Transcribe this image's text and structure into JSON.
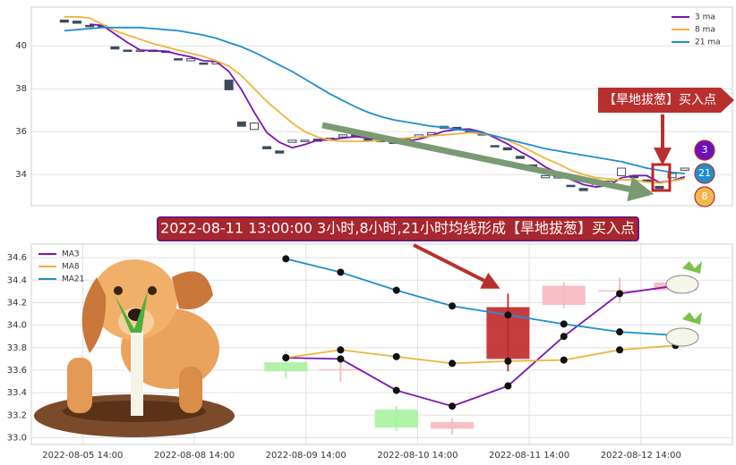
{
  "banner": "2022-08-11 13:00:00 3小时,8小时,21小时均线形成【旱地拔葱】买入点",
  "chart_data": [
    {
      "type": "candlestick",
      "open": [
        41.2,
        41.15,
        40.95,
        40.95,
        39.95,
        39.8,
        39.75,
        39.8,
        39.75,
        39.4,
        39.3,
        39.2,
        39.15,
        38.4,
        36.45,
        36.1,
        35.3,
        35.1,
        35.5,
        35.55,
        35.65,
        35.6,
        35.75,
        35.85,
        35.65,
        35.6,
        35.55,
        35.55,
        35.75,
        35.85,
        36.15,
        36.2,
        36.05,
        35.9,
        35.35,
        35.25,
        34.85,
        34.45,
        33.85,
        33.85,
        33.5,
        33.35,
        33.45,
        33.55,
        33.95,
        33.95,
        33.75,
        33.45,
        33.85,
        34.2
      ],
      "close": [
        41.1,
        41.05,
        40.9,
        40.85,
        39.85,
        39.75,
        39.8,
        39.75,
        39.7,
        39.35,
        39.4,
        39.15,
        39.25,
        37.95,
        36.25,
        36.4,
        35.2,
        35.0,
        35.6,
        35.6,
        35.55,
        35.7,
        35.85,
        35.75,
        35.6,
        35.55,
        35.45,
        35.65,
        35.85,
        35.95,
        36.25,
        36.1,
        36.0,
        35.85,
        35.3,
        35.15,
        34.75,
        34.35,
        33.95,
        33.9,
        33.45,
        33.25,
        33.55,
        33.7,
        34.3,
        33.85,
        33.7,
        33.35,
        34.05,
        34.3
      ],
      "up_color": "#ffffff",
      "down_color": "#3d4a5c",
      "series": [
        {
          "name": "3 ma",
          "color": "#7b16b0",
          "values": [
            null,
            null,
            41.0,
            40.95,
            40.55,
            40.15,
            39.8,
            39.77,
            39.75,
            39.6,
            39.48,
            39.3,
            39.27,
            38.8,
            37.95,
            36.9,
            35.95,
            35.5,
            35.25,
            35.4,
            35.6,
            35.62,
            35.7,
            35.77,
            35.7,
            35.63,
            35.53,
            35.55,
            35.65,
            35.82,
            36.02,
            36.1,
            36.12,
            35.98,
            35.72,
            35.43,
            35.07,
            34.75,
            34.35,
            34.07,
            33.77,
            33.53,
            33.42,
            33.5,
            33.85,
            33.95,
            33.95,
            33.63,
            33.7,
            33.9
          ]
        },
        {
          "name": "8 ma",
          "color": "#eeb43c",
          "values": [
            41.35,
            41.35,
            41.3,
            41.0,
            40.7,
            40.5,
            40.3,
            40.1,
            39.95,
            39.8,
            39.65,
            39.5,
            39.3,
            39.05,
            38.6,
            38.0,
            37.4,
            36.9,
            36.4,
            36.0,
            35.75,
            35.6,
            35.55,
            35.55,
            35.55,
            35.6,
            35.65,
            35.7,
            35.75,
            35.8,
            35.85,
            35.9,
            35.95,
            35.9,
            35.8,
            35.6,
            35.35,
            35.05,
            34.75,
            34.5,
            34.2,
            34.0,
            33.85,
            33.8,
            33.75,
            33.75,
            33.65,
            33.6,
            33.7,
            33.8
          ]
        },
        {
          "name": "21 ma",
          "color": "#1f8fce",
          "values": [
            40.7,
            40.75,
            40.8,
            40.85,
            40.85,
            40.85,
            40.85,
            40.8,
            40.75,
            40.7,
            40.6,
            40.5,
            40.35,
            40.15,
            39.95,
            39.7,
            39.4,
            39.1,
            38.8,
            38.45,
            38.1,
            37.75,
            37.45,
            37.15,
            36.9,
            36.7,
            36.55,
            36.45,
            36.35,
            36.25,
            36.2,
            36.1,
            36.05,
            35.95,
            35.8,
            35.65,
            35.5,
            35.35,
            35.2,
            35.1,
            35.0,
            34.9,
            34.8,
            34.7,
            34.6,
            34.45,
            34.3,
            34.2,
            34.1,
            34.05
          ]
        }
      ],
      "ylim": [
        32.55,
        41.8
      ],
      "yticks": [
        34,
        36,
        38,
        40
      ],
      "grid": true,
      "legend": "upper right",
      "annotation": "【旱地拔葱】买入点",
      "badges": [
        {
          "text": "3",
          "color": "#6a12b8"
        },
        {
          "text": "21",
          "color": "#1f8fce"
        },
        {
          "text": "8",
          "color": "#f0b850"
        }
      ]
    },
    {
      "type": "candlestick",
      "x": [
        1.82,
        2.31,
        2.81,
        3.31,
        3.81,
        4.31,
        4.81,
        5.31
      ],
      "xlim": [
        -0.46,
        5.82
      ],
      "xticks": [
        {
          "value": 0,
          "label": "2022-08-05 14:00"
        },
        {
          "value": 1,
          "label": "2022-08-08 14:00"
        },
        {
          "value": 2,
          "label": "2022-08-09 14:00"
        },
        {
          "value": 3,
          "label": "2022-08-10 14:00"
        },
        {
          "value": 4,
          "label": "2022-08-11 14:00"
        },
        {
          "value": 5,
          "label": "2022-08-12 14:00"
        }
      ],
      "open": [
        33.67,
        33.6,
        33.25,
        33.08,
        33.7,
        34.18,
        34.3,
        34.31
      ],
      "close": [
        33.59,
        33.61,
        33.09,
        33.14,
        34.16,
        34.35,
        34.31,
        34.38
      ],
      "high": [
        33.77,
        33.7,
        33.28,
        33.17,
        34.28,
        34.38,
        34.42,
        34.42
      ],
      "low": [
        33.53,
        33.5,
        33.06,
        33.03,
        33.59,
        34.15,
        34.2,
        34.28
      ],
      "colors": [
        "#a9f2a0",
        "#f6b8c0",
        "#a9f2a0",
        "#f6b8c0",
        "#c0282a",
        "#f6b8c0",
        "#f6b8c0",
        "#f6b8c0"
      ],
      "series": [
        {
          "name": "MA3",
          "color": "#7b16b0",
          "values": [
            33.71,
            33.7,
            33.42,
            33.28,
            33.46,
            33.9,
            34.28,
            34.35
          ]
        },
        {
          "name": "MA8",
          "color": "#eeb43c",
          "values": [
            33.71,
            33.78,
            33.72,
            33.66,
            33.68,
            33.69,
            33.78,
            33.82
          ]
        },
        {
          "name": "MA21",
          "color": "#1f8fce",
          "values": [
            34.59,
            34.47,
            34.31,
            34.17,
            34.09,
            34.01,
            33.94,
            33.91
          ]
        }
      ],
      "marker_color": "#111111",
      "ylim": [
        32.94,
        34.72
      ],
      "yticks": [
        {
          "value": 33,
          "label": "33.0"
        },
        33.2,
        33.4,
        33.6,
        33.8,
        {
          "value": 34,
          "label": "34.0"
        },
        34.2,
        34.4,
        34.6
      ],
      "grid": true,
      "legend": "upper left"
    }
  ]
}
